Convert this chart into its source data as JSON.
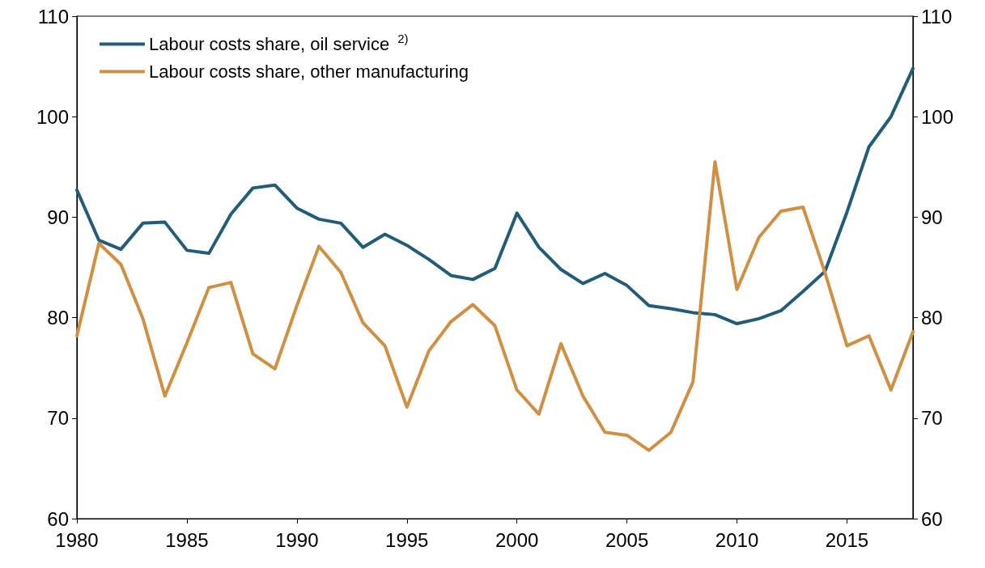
{
  "chart_data": {
    "type": "line",
    "x": [
      1980,
      1981,
      1982,
      1983,
      1984,
      1985,
      1986,
      1987,
      1988,
      1989,
      1990,
      1991,
      1992,
      1993,
      1994,
      1995,
      1996,
      1997,
      1998,
      1999,
      2000,
      2001,
      2002,
      2003,
      2004,
      2005,
      2006,
      2007,
      2008,
      2009,
      2010,
      2011,
      2012,
      2013,
      2014,
      2015,
      2016,
      2017,
      2018
    ],
    "series": [
      {
        "name": "Labour costs share, oil service $^{2)}$",
        "color": "#215d7a",
        "values": [
          92.7,
          87.7,
          86.8,
          89.4,
          89.5,
          86.7,
          86.4,
          90.3,
          92.9,
          93.2,
          90.9,
          89.8,
          89.4,
          87.0,
          88.3,
          87.2,
          85.8,
          84.2,
          83.8,
          84.9,
          90.4,
          87.0,
          84.8,
          83.4,
          84.4,
          83.2,
          81.2,
          80.9,
          80.5,
          80.3,
          79.4,
          79.9,
          80.7,
          82.6,
          84.6,
          90.5,
          97.0,
          100.0,
          104.8
        ]
      },
      {
        "name": "Labour costs share, other manufacturing",
        "color": "#d08f41",
        "values": [
          78.2,
          87.4,
          85.3,
          79.9,
          72.2,
          77.5,
          83.0,
          83.5,
          76.4,
          74.9,
          81.2,
          87.1,
          84.5,
          79.5,
          77.2,
          71.1,
          76.7,
          79.6,
          81.3,
          79.2,
          72.8,
          70.4,
          77.4,
          72.2,
          68.6,
          68.3,
          66.8,
          68.6,
          73.6,
          95.5,
          82.8,
          88.0,
          90.6,
          91.0,
          84.5,
          77.2,
          78.2,
          72.8,
          78.6
        ]
      }
    ],
    "xlim": [
      1980,
      2018
    ],
    "xticks": [
      1980,
      1985,
      1990,
      1995,
      2000,
      2005,
      2010,
      2015
    ],
    "ylim": [
      60,
      110
    ],
    "yticks": [
      60,
      70,
      80,
      90,
      100,
      110
    ],
    "y2lim": [
      60,
      110
    ],
    "y2ticks": [
      60,
      70,
      80,
      90,
      100,
      110
    ],
    "grid": false,
    "legend": "top left",
    "marker": "none",
    "line_style": "solid"
  }
}
